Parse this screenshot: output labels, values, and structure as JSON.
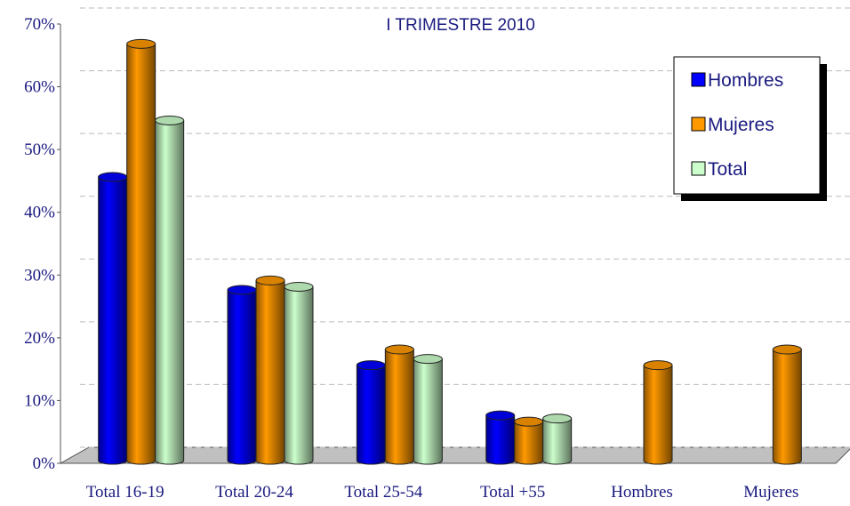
{
  "chart_data": {
    "type": "bar",
    "title": "I TRIMESTRE 2010",
    "categories": [
      "Total 16-19",
      "Total 20-24",
      "Total 25-54",
      "Total +55",
      "Hombres",
      "Mujeres"
    ],
    "series": [
      {
        "name": "Hombres",
        "color": "#0000ff",
        "values": [
          44.5,
          26.5,
          14.5,
          6.5,
          null,
          null
        ]
      },
      {
        "name": "Mujeres",
        "color": "#ff9900",
        "values": [
          65.7,
          28,
          17,
          5.5,
          14.5,
          17
        ]
      },
      {
        "name": "Total",
        "color": "#ccffcc",
        "values": [
          53.5,
          27,
          15.5,
          6,
          null,
          null
        ]
      }
    ],
    "ylim": [
      0,
      70
    ],
    "yticks": [
      {
        "value": 0,
        "label": "0%"
      },
      {
        "value": 10,
        "label": "10%"
      },
      {
        "value": 20,
        "label": "20%"
      },
      {
        "value": 30,
        "label": "30%"
      },
      {
        "value": 40,
        "label": "40%"
      },
      {
        "value": 50,
        "label": "50%"
      },
      {
        "value": 60,
        "label": "60%"
      },
      {
        "value": 70,
        "label": "70%"
      }
    ],
    "grid": true,
    "legend": "top-right"
  }
}
